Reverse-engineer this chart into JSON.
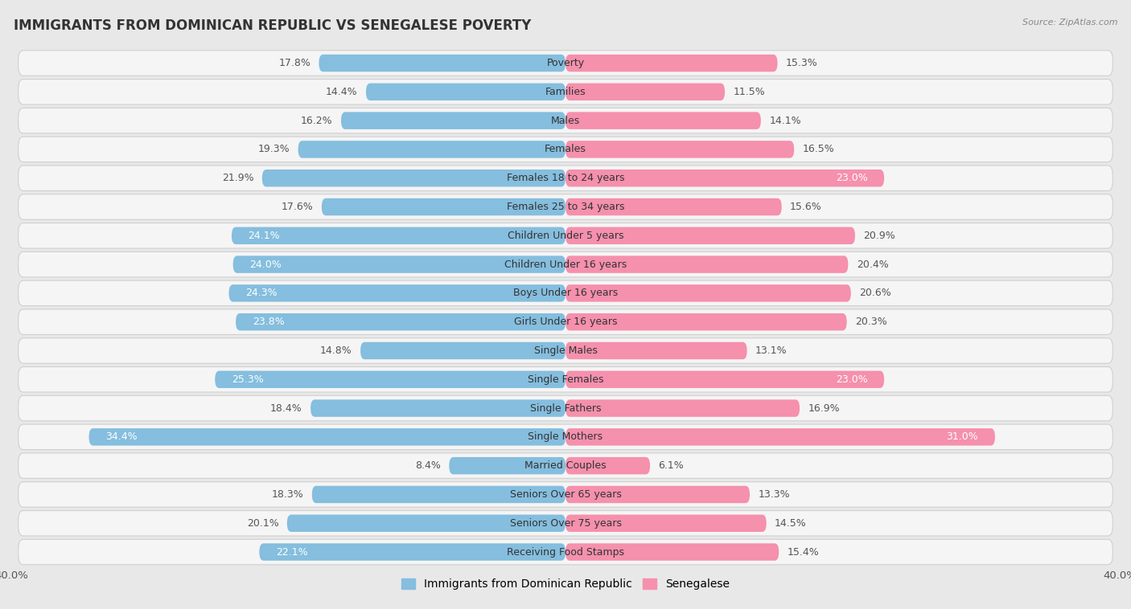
{
  "title": "IMMIGRANTS FROM DOMINICAN REPUBLIC VS SENEGALESE POVERTY",
  "source": "Source: ZipAtlas.com",
  "categories": [
    "Poverty",
    "Families",
    "Males",
    "Females",
    "Females 18 to 24 years",
    "Females 25 to 34 years",
    "Children Under 5 years",
    "Children Under 16 years",
    "Boys Under 16 years",
    "Girls Under 16 years",
    "Single Males",
    "Single Females",
    "Single Fathers",
    "Single Mothers",
    "Married Couples",
    "Seniors Over 65 years",
    "Seniors Over 75 years",
    "Receiving Food Stamps"
  ],
  "left_values": [
    17.8,
    14.4,
    16.2,
    19.3,
    21.9,
    17.6,
    24.1,
    24.0,
    24.3,
    23.8,
    14.8,
    25.3,
    18.4,
    34.4,
    8.4,
    18.3,
    20.1,
    22.1
  ],
  "right_values": [
    15.3,
    11.5,
    14.1,
    16.5,
    23.0,
    15.6,
    20.9,
    20.4,
    20.6,
    20.3,
    13.1,
    23.0,
    16.9,
    31.0,
    6.1,
    13.3,
    14.5,
    15.4
  ],
  "left_color": "#85bede",
  "right_color": "#f590ad",
  "left_label": "Immigrants from Dominican Republic",
  "right_label": "Senegalese",
  "axis_max": 40.0,
  "background_color": "#e8e8e8",
  "row_bg_color": "#f5f5f5",
  "label_fontsize": 9.0,
  "value_fontsize": 9.0,
  "title_fontsize": 12,
  "inside_label_threshold": 22.0,
  "inside_label_color": "#ffffff",
  "outside_label_color": "#555555"
}
